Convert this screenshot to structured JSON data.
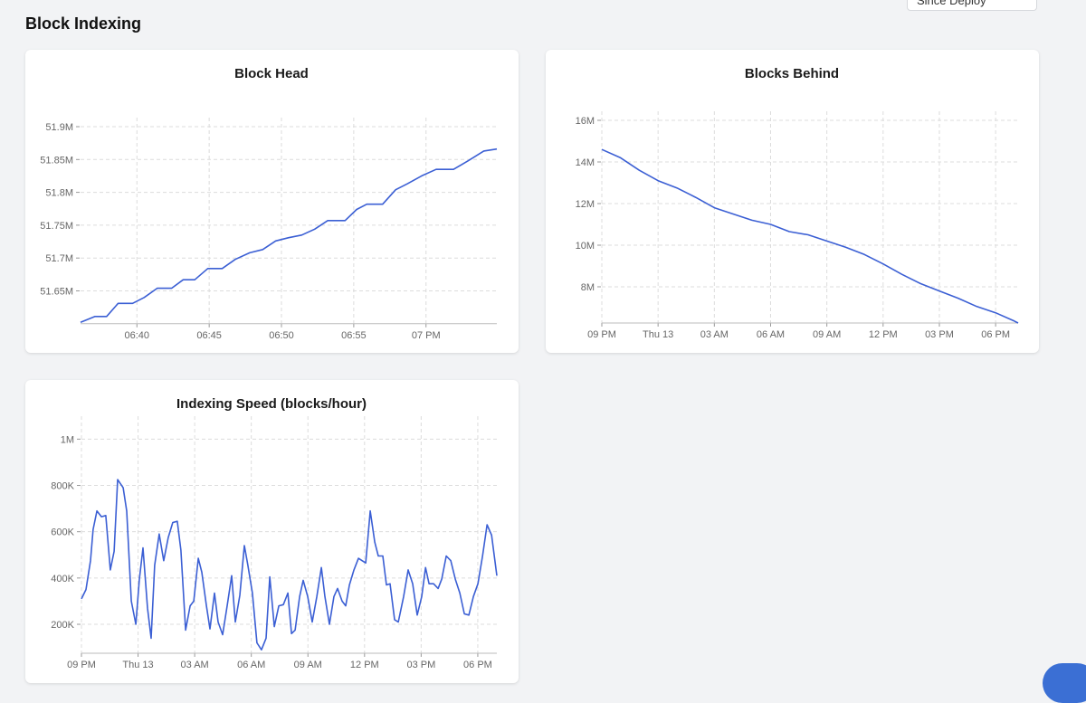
{
  "page": {
    "title": "Block Indexing",
    "filter": "Since Deploy"
  },
  "chart_data": [
    {
      "type": "line",
      "title": "Block Head",
      "color": "#3b5fd4",
      "grid": true,
      "x": [
        1116.1,
        1117.1,
        1117.9,
        1118.7,
        1119.7,
        1120.5,
        1121.4,
        1122.4,
        1123.2,
        1124.0,
        1124.9,
        1125.9,
        1126.8,
        1127.8,
        1128.7,
        1129.6,
        1130.5,
        1131.4,
        1132.3,
        1133.2,
        1134.4,
        1135.2,
        1135.9,
        1137.0,
        1137.9,
        1138.7,
        1139.7,
        1140.7,
        1141.9,
        1142.9,
        1144.0,
        1144.9
      ],
      "values": [
        51602000,
        51611000,
        51611000,
        51631000,
        51631000,
        51640000,
        51654000,
        51654000,
        51667000,
        51667000,
        51684000,
        51684000,
        51698000,
        51708000,
        51713000,
        51726000,
        51731000,
        51735000,
        51744000,
        51757000,
        51757000,
        51774000,
        51782000,
        51782000,
        51804000,
        51813000,
        51825000,
        51835000,
        51835000,
        51848000,
        51863000,
        51866000
      ],
      "xlim": [
        1116.1,
        1144.9
      ],
      "xticks": [
        {
          "value": 1120,
          "label": "06:40"
        },
        {
          "value": 1125,
          "label": "06:45"
        },
        {
          "value": 1130,
          "label": "06:50"
        },
        {
          "value": 1135,
          "label": "06:55"
        },
        {
          "value": 1140,
          "label": "07 PM"
        }
      ],
      "ylim": [
        51600000,
        51900000
      ],
      "yticks": [
        {
          "value": 51650000,
          "label": "51.65M"
        },
        {
          "value": 51700000,
          "label": "51.7M"
        },
        {
          "value": 51750000,
          "label": "51.75M"
        },
        {
          "value": 51800000,
          "label": "51.8M"
        },
        {
          "value": 51850000,
          "label": "51.85M"
        },
        {
          "value": 51900000,
          "label": "51.9M"
        }
      ]
    },
    {
      "type": "line",
      "title": "Blocks Behind",
      "color": "#3b5fd4",
      "grid": true,
      "x": [
        21,
        22,
        23,
        24,
        25,
        26,
        27,
        28,
        29,
        30,
        31,
        32,
        33,
        34,
        35,
        36,
        37,
        38,
        39,
        40,
        41,
        42,
        43,
        43.2
      ],
      "values": [
        14600000,
        14200000,
        13600000,
        13100000,
        12750000,
        12300000,
        11800000,
        11500000,
        11200000,
        11000000,
        10650000,
        10500000,
        10200000,
        9900000,
        9550000,
        9100000,
        8600000,
        8150000,
        7800000,
        7450000,
        7050000,
        6750000,
        6350000,
        6260000
      ],
      "xlim": [
        21,
        43.2
      ],
      "xticks": [
        {
          "value": 21,
          "label": "09 PM"
        },
        {
          "value": 24,
          "label": "Thu 13"
        },
        {
          "value": 27,
          "label": "03 AM"
        },
        {
          "value": 30,
          "label": "06 AM"
        },
        {
          "value": 33,
          "label": "09 AM"
        },
        {
          "value": 36,
          "label": "12 PM"
        },
        {
          "value": 39,
          "label": "03 PM"
        },
        {
          "value": 42,
          "label": "06 PM"
        }
      ],
      "ylim": [
        6260000,
        16000000
      ],
      "yticks": [
        {
          "value": 8000000,
          "label": "8M"
        },
        {
          "value": 10000000,
          "label": "10M"
        },
        {
          "value": 12000000,
          "label": "12M"
        },
        {
          "value": 14000000,
          "label": "14M"
        },
        {
          "value": 16000000,
          "label": "16M"
        }
      ]
    },
    {
      "type": "line",
      "title": "Indexing Speed (blocks/hour)",
      "color": "#3b5fd4",
      "grid": true,
      "x": [
        21.0,
        21.24,
        21.48,
        21.62,
        21.82,
        22.06,
        22.29,
        22.53,
        22.73,
        22.92,
        23.21,
        23.4,
        23.64,
        23.88,
        24.07,
        24.26,
        24.5,
        24.69,
        24.88,
        25.12,
        25.36,
        25.6,
        25.84,
        26.08,
        26.27,
        26.52,
        26.76,
        26.95,
        27.19,
        27.38,
        27.62,
        27.81,
        28.05,
        28.24,
        28.48,
        28.72,
        28.96,
        29.15,
        29.39,
        29.63,
        29.82,
        30.06,
        30.3,
        30.54,
        30.78,
        30.98,
        31.22,
        31.46,
        31.7,
        31.94,
        32.13,
        32.32,
        32.56,
        32.75,
        32.99,
        33.23,
        33.47,
        33.71,
        33.9,
        34.14,
        34.38,
        34.57,
        34.81,
        35.0,
        35.2,
        35.44,
        35.68,
        35.87,
        36.06,
        36.3,
        36.54,
        36.73,
        36.97,
        37.16,
        37.35,
        37.59,
        37.79,
        38.07,
        38.31,
        38.55,
        38.79,
        39.03,
        39.23,
        39.42,
        39.66,
        39.9,
        40.09,
        40.33,
        40.57,
        40.81,
        41.05,
        41.29,
        41.53,
        41.77,
        42.01,
        42.25,
        42.49,
        42.73,
        43.01
      ],
      "values": [
        310000,
        350000,
        475000,
        610000,
        690000,
        665000,
        670000,
        435000,
        515000,
        825000,
        790000,
        690000,
        300000,
        200000,
        395000,
        530000,
        270000,
        140000,
        455000,
        590000,
        475000,
        575000,
        640000,
        645000,
        520000,
        175000,
        280000,
        300000,
        485000,
        425000,
        280000,
        180000,
        335000,
        210000,
        155000,
        280000,
        410000,
        210000,
        325000,
        540000,
        455000,
        335000,
        120000,
        90000,
        140000,
        405000,
        190000,
        280000,
        285000,
        335000,
        160000,
        175000,
        320000,
        390000,
        320000,
        210000,
        320000,
        445000,
        320000,
        200000,
        320000,
        355000,
        300000,
        280000,
        370000,
        435000,
        485000,
        475000,
        465000,
        690000,
        555000,
        495000,
        495000,
        370000,
        375000,
        220000,
        210000,
        320000,
        435000,
        375000,
        240000,
        320000,
        445000,
        375000,
        375000,
        355000,
        395000,
        495000,
        475000,
        395000,
        335000,
        245000,
        240000,
        320000,
        375000,
        495000,
        630000,
        585000,
        410000
      ],
      "xlim": [
        21,
        43.01
      ],
      "xticks": [
        {
          "value": 21,
          "label": "09 PM"
        },
        {
          "value": 24,
          "label": "Thu 13"
        },
        {
          "value": 27,
          "label": "03 AM"
        },
        {
          "value": 30,
          "label": "06 AM"
        },
        {
          "value": 33,
          "label": "09 AM"
        },
        {
          "value": 36,
          "label": "12 PM"
        },
        {
          "value": 39,
          "label": "03 PM"
        },
        {
          "value": 42,
          "label": "06 PM"
        }
      ],
      "ylim": [
        75000,
        1060000
      ],
      "yticks": [
        {
          "value": 200000,
          "label": "200K"
        },
        {
          "value": 400000,
          "label": "400K"
        },
        {
          "value": 600000,
          "label": "600K"
        },
        {
          "value": 800000,
          "label": "800K"
        },
        {
          "value": 1000000,
          "label": "1M"
        }
      ]
    }
  ]
}
